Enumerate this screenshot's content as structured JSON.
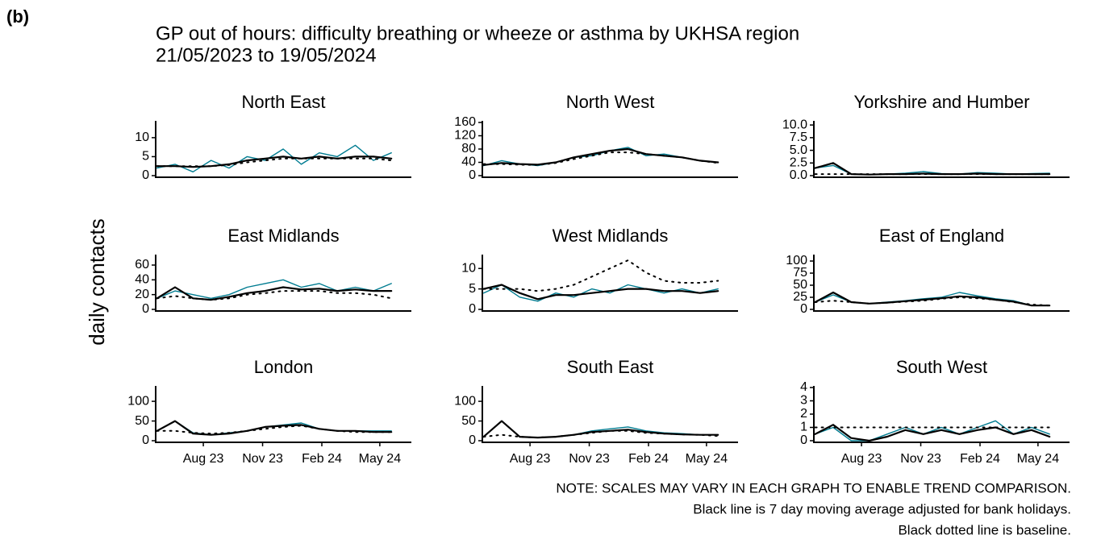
{
  "figure": {
    "label": "(b)",
    "title": "GP out of hours: difficulty breathing or wheeze or asthma by UKHSA region",
    "subtitle": "21/05/2023 to 19/05/2024",
    "y_label": "daily contacts",
    "notes": [
      "NOTE: SCALES MAY VARY IN EACH GRAPH TO ENABLE TREND COMPARISON.",
      "Black line is 7 day moving average adjusted for bank holidays.",
      "Black dotted line is baseline."
    ]
  },
  "chart_data": [
    {
      "type": "line",
      "title": "North East",
      "x": [
        "2023-05-21",
        "2023-06-18",
        "2023-07-16",
        "2023-08-13",
        "2023-09-10",
        "2023-10-08",
        "2023-11-05",
        "2023-12-03",
        "2023-12-31",
        "2024-01-28",
        "2024-02-25",
        "2024-03-24",
        "2024-04-21",
        "2024-05-19"
      ],
      "xlim": [
        "2023-05-19",
        "2024-06-19"
      ],
      "ylim": [
        0,
        14
      ],
      "yticks": [
        0,
        5,
        10
      ],
      "series": [
        {
          "color": "#007c91",
          "linestyle": "solid",
          "values": [
            2,
            3,
            1,
            4,
            2,
            5,
            4,
            7,
            3,
            6,
            5,
            8,
            4,
            6
          ]
        },
        {
          "color": "#000000",
          "linestyle": "solid",
          "values": [
            2.5,
            2.5,
            2.3,
            2.5,
            3,
            4,
            4.5,
            5,
            4.5,
            5,
            4.5,
            5,
            5,
            4.5
          ]
        },
        {
          "color": "#000000",
          "linestyle": "dotted",
          "values": [
            2.5,
            2.5,
            2.5,
            2.5,
            2.8,
            3.5,
            4,
            4.5,
            4.5,
            4.5,
            4.5,
            4.5,
            4.5,
            4
          ]
        }
      ]
    },
    {
      "type": "line",
      "title": "North West",
      "x": [
        "2023-05-21",
        "2023-06-18",
        "2023-07-16",
        "2023-08-13",
        "2023-09-10",
        "2023-10-08",
        "2023-11-05",
        "2023-12-03",
        "2023-12-31",
        "2024-01-28",
        "2024-02-25",
        "2024-03-24",
        "2024-04-21",
        "2024-05-19"
      ],
      "xlim": [
        "2023-05-19",
        "2024-06-19"
      ],
      "ylim": [
        0,
        160
      ],
      "yticks": [
        0,
        40,
        80,
        120,
        160
      ],
      "series": [
        {
          "color": "#007c91",
          "linestyle": "solid",
          "values": [
            30,
            45,
            35,
            30,
            40,
            55,
            60,
            75,
            85,
            60,
            65,
            55,
            45,
            40
          ]
        },
        {
          "color": "#000000",
          "linestyle": "solid",
          "values": [
            32,
            38,
            35,
            33,
            40,
            55,
            65,
            75,
            80,
            65,
            60,
            55,
            45,
            40
          ]
        },
        {
          "color": "#000000",
          "linestyle": "dotted",
          "values": [
            35,
            35,
            33,
            32,
            38,
            50,
            60,
            70,
            70,
            65,
            60,
            55,
            45,
            38
          ]
        }
      ]
    },
    {
      "type": "line",
      "title": "Yorkshire and Humber",
      "x": [
        "2023-05-21",
        "2023-06-18",
        "2023-07-16",
        "2023-08-13",
        "2023-09-10",
        "2023-10-08",
        "2023-11-05",
        "2023-12-03",
        "2023-12-31",
        "2024-01-28",
        "2024-02-25",
        "2024-03-24",
        "2024-04-21",
        "2024-05-19"
      ],
      "xlim": [
        "2023-05-19",
        "2024-06-19"
      ],
      "ylim": [
        0,
        10.5
      ],
      "yticks": [
        {
          "value": 0,
          "label": "0.0"
        },
        {
          "value": 2.5,
          "label": "2.5"
        },
        {
          "value": 5,
          "label": "5.0"
        },
        {
          "value": 7.5,
          "label": "7.5"
        },
        {
          "value": 10,
          "label": "10.0"
        }
      ],
      "series": [
        {
          "color": "#007c91",
          "linestyle": "solid",
          "values": [
            1.5,
            2,
            0.3,
            0.2,
            0.3,
            0.5,
            0.8,
            0.4,
            0.3,
            0.6,
            0.5,
            0.3,
            0.4,
            0.5
          ]
        },
        {
          "color": "#000000",
          "linestyle": "solid",
          "values": [
            1.5,
            2.5,
            0.3,
            0.2,
            0.3,
            0.3,
            0.4,
            0.3,
            0.3,
            0.4,
            0.3,
            0.3,
            0.3,
            0.3
          ]
        },
        {
          "color": "#000000",
          "linestyle": "dotted",
          "values": [
            0.3,
            0.3,
            0.3,
            0.3,
            0.3,
            0.3,
            0.3,
            0.3,
            0.3,
            0.3,
            0.3,
            0.3,
            0.3,
            0.3
          ]
        }
      ]
    },
    {
      "type": "line",
      "title": "East Midlands",
      "x": [
        "2023-05-21",
        "2023-06-18",
        "2023-07-16",
        "2023-08-13",
        "2023-09-10",
        "2023-10-08",
        "2023-11-05",
        "2023-12-03",
        "2023-12-31",
        "2024-01-28",
        "2024-02-25",
        "2024-03-24",
        "2024-04-21",
        "2024-05-19"
      ],
      "xlim": [
        "2023-05-19",
        "2024-06-19"
      ],
      "ylim": [
        0,
        72
      ],
      "yticks": [
        0,
        20,
        40,
        60
      ],
      "series": [
        {
          "color": "#007c91",
          "linestyle": "solid",
          "values": [
            15,
            25,
            20,
            15,
            20,
            30,
            35,
            40,
            30,
            35,
            25,
            30,
            25,
            35
          ]
        },
        {
          "color": "#000000",
          "linestyle": "solid",
          "values": [
            15,
            30,
            15,
            13,
            17,
            22,
            25,
            30,
            27,
            28,
            25,
            27,
            25,
            25
          ]
        },
        {
          "color": "#000000",
          "linestyle": "dotted",
          "values": [
            15,
            18,
            15,
            13,
            15,
            20,
            22,
            25,
            25,
            25,
            22,
            22,
            20,
            15
          ]
        }
      ]
    },
    {
      "type": "line",
      "title": "West Midlands",
      "x": [
        "2023-05-21",
        "2023-06-18",
        "2023-07-16",
        "2023-08-13",
        "2023-09-10",
        "2023-10-08",
        "2023-11-05",
        "2023-12-03",
        "2023-12-31",
        "2024-01-28",
        "2024-02-25",
        "2024-03-24",
        "2024-04-21",
        "2024-05-19"
      ],
      "xlim": [
        "2023-05-19",
        "2024-06-19"
      ],
      "ylim": [
        0,
        13
      ],
      "yticks": [
        0,
        5,
        10
      ],
      "series": [
        {
          "color": "#007c91",
          "linestyle": "solid",
          "values": [
            4,
            6,
            3,
            2,
            4,
            3,
            5,
            4,
            6,
            5,
            4,
            5,
            4,
            5
          ]
        },
        {
          "color": "#000000",
          "linestyle": "solid",
          "values": [
            5,
            6,
            4,
            2.5,
            3.5,
            3.5,
            4,
            4.5,
            5,
            5,
            4.5,
            4.5,
            4,
            4.5
          ]
        },
        {
          "color": "#000000",
          "linestyle": "dotted",
          "values": [
            5,
            5,
            5,
            4.5,
            5,
            6,
            8,
            10,
            12,
            9,
            7,
            6.5,
            6.5,
            7
          ]
        }
      ]
    },
    {
      "type": "line",
      "title": "East of England",
      "x": [
        "2023-05-21",
        "2023-06-18",
        "2023-07-16",
        "2023-08-13",
        "2023-09-10",
        "2023-10-08",
        "2023-11-05",
        "2023-12-03",
        "2023-12-31",
        "2024-01-28",
        "2024-02-25",
        "2024-03-24",
        "2024-04-21",
        "2024-05-19"
      ],
      "xlim": [
        "2023-05-19",
        "2024-06-19"
      ],
      "ylim": [
        0,
        110
      ],
      "yticks": [
        0,
        25,
        50,
        75,
        100
      ],
      "series": [
        {
          "color": "#007c91",
          "linestyle": "solid",
          "values": [
            15,
            30,
            15,
            12,
            15,
            18,
            22,
            25,
            35,
            28,
            22,
            18,
            8,
            8
          ]
        },
        {
          "color": "#000000",
          "linestyle": "solid",
          "values": [
            15,
            35,
            15,
            12,
            14,
            17,
            20,
            23,
            27,
            25,
            20,
            16,
            8,
            8
          ]
        },
        {
          "color": "#000000",
          "linestyle": "dotted",
          "values": [
            15,
            18,
            15,
            12,
            14,
            16,
            18,
            22,
            25,
            23,
            20,
            15,
            10,
            8
          ]
        }
      ]
    },
    {
      "type": "line",
      "title": "London",
      "x": [
        "2023-05-21",
        "2023-06-18",
        "2023-07-16",
        "2023-08-13",
        "2023-09-10",
        "2023-10-08",
        "2023-11-05",
        "2023-12-03",
        "2023-12-31",
        "2024-01-28",
        "2024-02-25",
        "2024-03-24",
        "2024-04-21",
        "2024-05-19"
      ],
      "xlim": [
        "2023-05-19",
        "2024-06-19"
      ],
      "ylim": [
        0,
        135
      ],
      "yticks": [
        0,
        50,
        100
      ],
      "xticks": [
        {
          "value": "2023-08-01",
          "label": "Aug 23"
        },
        {
          "value": "2023-11-01",
          "label": "Nov 23"
        },
        {
          "value": "2024-02-01",
          "label": "Feb 24"
        },
        {
          "value": "2024-05-01",
          "label": "May 24"
        }
      ],
      "series": [
        {
          "color": "#007c91",
          "linestyle": "solid",
          "values": [
            25,
            50,
            20,
            15,
            20,
            25,
            35,
            40,
            45,
            30,
            25,
            25,
            25,
            25
          ]
        },
        {
          "color": "#000000",
          "linestyle": "solid",
          "values": [
            25,
            50,
            18,
            15,
            18,
            25,
            35,
            38,
            40,
            30,
            25,
            25,
            22,
            22
          ]
        },
        {
          "color": "#000000",
          "linestyle": "dotted",
          "values": [
            25,
            25,
            20,
            18,
            20,
            25,
            30,
            35,
            38,
            30,
            25,
            22,
            22,
            22
          ]
        }
      ]
    },
    {
      "type": "line",
      "title": "South East",
      "x": [
        "2023-05-21",
        "2023-06-18",
        "2023-07-16",
        "2023-08-13",
        "2023-09-10",
        "2023-10-08",
        "2023-11-05",
        "2023-12-03",
        "2023-12-31",
        "2024-01-28",
        "2024-02-25",
        "2024-03-24",
        "2024-04-21",
        "2024-05-19"
      ],
      "xlim": [
        "2023-05-19",
        "2024-06-19"
      ],
      "ylim": [
        0,
        135
      ],
      "yticks": [
        0,
        50,
        100
      ],
      "xticks": [
        {
          "value": "2023-08-01",
          "label": "Aug 23"
        },
        {
          "value": "2023-11-01",
          "label": "Nov 23"
        },
        {
          "value": "2024-02-01",
          "label": "Feb 24"
        },
        {
          "value": "2024-05-01",
          "label": "May 24"
        }
      ],
      "series": [
        {
          "color": "#007c91",
          "linestyle": "solid",
          "values": [
            10,
            50,
            10,
            8,
            10,
            15,
            25,
            30,
            35,
            25,
            20,
            18,
            15,
            15
          ]
        },
        {
          "color": "#000000",
          "linestyle": "solid",
          "values": [
            10,
            50,
            10,
            8,
            10,
            15,
            22,
            25,
            28,
            22,
            18,
            16,
            15,
            15
          ]
        },
        {
          "color": "#000000",
          "linestyle": "dotted",
          "values": [
            10,
            15,
            10,
            8,
            10,
            15,
            20,
            25,
            25,
            20,
            18,
            16,
            15,
            12
          ]
        }
      ]
    },
    {
      "type": "line",
      "title": "South West",
      "x": [
        "2023-05-21",
        "2023-06-18",
        "2023-07-16",
        "2023-08-13",
        "2023-09-10",
        "2023-10-08",
        "2023-11-05",
        "2023-12-03",
        "2023-12-31",
        "2024-01-28",
        "2024-02-25",
        "2024-03-24",
        "2024-04-21",
        "2024-05-19"
      ],
      "xlim": [
        "2023-05-19",
        "2024-06-19"
      ],
      "ylim": [
        0,
        4
      ],
      "yticks": [
        0,
        1,
        2,
        3,
        4
      ],
      "xticks": [
        {
          "value": "2023-08-01",
          "label": "Aug 23"
        },
        {
          "value": "2023-11-01",
          "label": "Nov 23"
        },
        {
          "value": "2024-02-01",
          "label": "Feb 24"
        },
        {
          "value": "2024-05-01",
          "label": "May 24"
        }
      ],
      "series": [
        {
          "color": "#007c91",
          "linestyle": "solid",
          "values": [
            0.5,
            1,
            0,
            0,
            0.5,
            1,
            0.5,
            1,
            0.5,
            1,
            1.5,
            0.5,
            1,
            0.5
          ]
        },
        {
          "color": "#000000",
          "linestyle": "solid",
          "values": [
            0.5,
            1.2,
            0.2,
            0,
            0.3,
            0.8,
            0.5,
            0.8,
            0.5,
            0.8,
            1,
            0.5,
            0.8,
            0.3
          ]
        },
        {
          "color": "#000000",
          "linestyle": "dotted",
          "values": [
            1,
            1,
            1,
            1,
            1,
            1,
            1,
            1,
            1,
            1,
            1,
            1,
            1,
            1
          ]
        }
      ]
    }
  ]
}
